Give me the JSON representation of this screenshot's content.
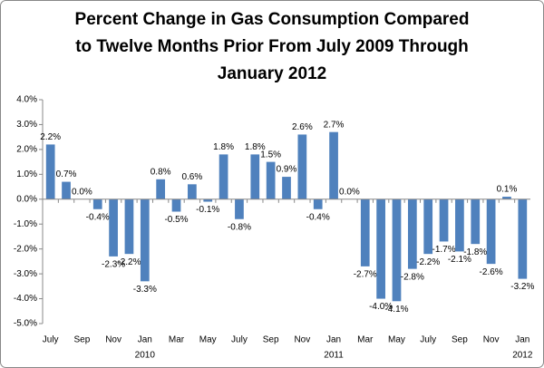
{
  "chart_data": {
    "type": "bar",
    "title": [
      "Percent Change in Gas Consumption Compared",
      "to Twelve Months Prior From July 2009 Through",
      "January 2012"
    ],
    "categories": [
      "July",
      null,
      "Sep",
      null,
      "Nov",
      null,
      "Jan",
      null,
      "Mar",
      null,
      "May",
      null,
      "July",
      null,
      "Sep",
      null,
      "Nov",
      null,
      "Jan",
      null,
      "Mar",
      null,
      "May",
      null,
      "July",
      null,
      "Sep",
      null,
      "Nov",
      null,
      "Jan"
    ],
    "years": [
      null,
      null,
      null,
      null,
      null,
      null,
      "2010",
      null,
      null,
      null,
      null,
      null,
      null,
      null,
      null,
      null,
      null,
      null,
      "2011",
      null,
      null,
      null,
      null,
      null,
      null,
      null,
      null,
      null,
      null,
      null,
      "2012"
    ],
    "values": [
      2.2,
      0.7,
      0.0,
      -0.4,
      -2.3,
      -2.2,
      -3.3,
      0.8,
      -0.5,
      0.6,
      -0.1,
      1.8,
      -0.8,
      1.8,
      1.5,
      0.9,
      2.6,
      -0.4,
      2.7,
      0.0,
      -2.7,
      -4.0,
      -4.1,
      -2.8,
      -2.2,
      -1.7,
      -2.1,
      -1.8,
      -2.6,
      0.1,
      -3.2
    ],
    "value_labels": [
      "2.2%",
      "0.7%",
      "0.0%",
      "-0.4%",
      "-2.3%",
      "-2.2%",
      "-3.3%",
      "0.8%",
      "-0.5%",
      "0.6%",
      "-0.1%",
      "1.8%",
      "-0.8%",
      "1.8%",
      "1.5%",
      "0.9%",
      "2.6%",
      "-0.4%",
      "2.7%",
      "0.0%",
      "-2.7%",
      "-4.0%",
      "-4.1%",
      "-2.8%",
      "-2.2%",
      "-1.7%",
      "-2.1%",
      "-1.8%",
      "-2.6%",
      "0.1%",
      "-3.2%"
    ],
    "color": "#4f81bd",
    "ylim": [
      -5,
      4
    ],
    "yticks": [
      {
        "value": -5,
        "label": "-5.0%"
      },
      {
        "value": -4,
        "label": "-4.0%"
      },
      {
        "value": -3,
        "label": "-3.0%"
      },
      {
        "value": -2,
        "label": "-2.0%"
      },
      {
        "value": -1,
        "label": "-1.0%"
      },
      {
        "value": 0,
        "label": "0.0%"
      },
      {
        "value": 1,
        "label": "1.0%"
      },
      {
        "value": 2,
        "label": "2.0%"
      },
      {
        "value": 3,
        "label": "3.0%"
      },
      {
        "value": 4,
        "label": "4.0%"
      }
    ],
    "grid": false
  }
}
